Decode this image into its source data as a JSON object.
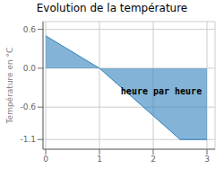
{
  "chart_data": {
    "type": "area",
    "title": "Evolution de la température",
    "ylabel": "Température en °C",
    "x": [
      0,
      1,
      2.5,
      3
    ],
    "values": [
      0.5,
      0.0,
      -1.1,
      -1.1
    ],
    "xlim": [
      -0.05,
      3.15
    ],
    "ylim": [
      -1.25,
      0.72
    ],
    "xticks": [
      0,
      1,
      2,
      3
    ],
    "yticks": [
      -1.1,
      -0.6,
      {
        "value": 0,
        "label": "0.0"
      },
      0.6
    ],
    "grid": true,
    "annotations": [
      {
        "text": "heure par heure",
        "x": 2.15,
        "y": -0.35
      }
    ]
  }
}
